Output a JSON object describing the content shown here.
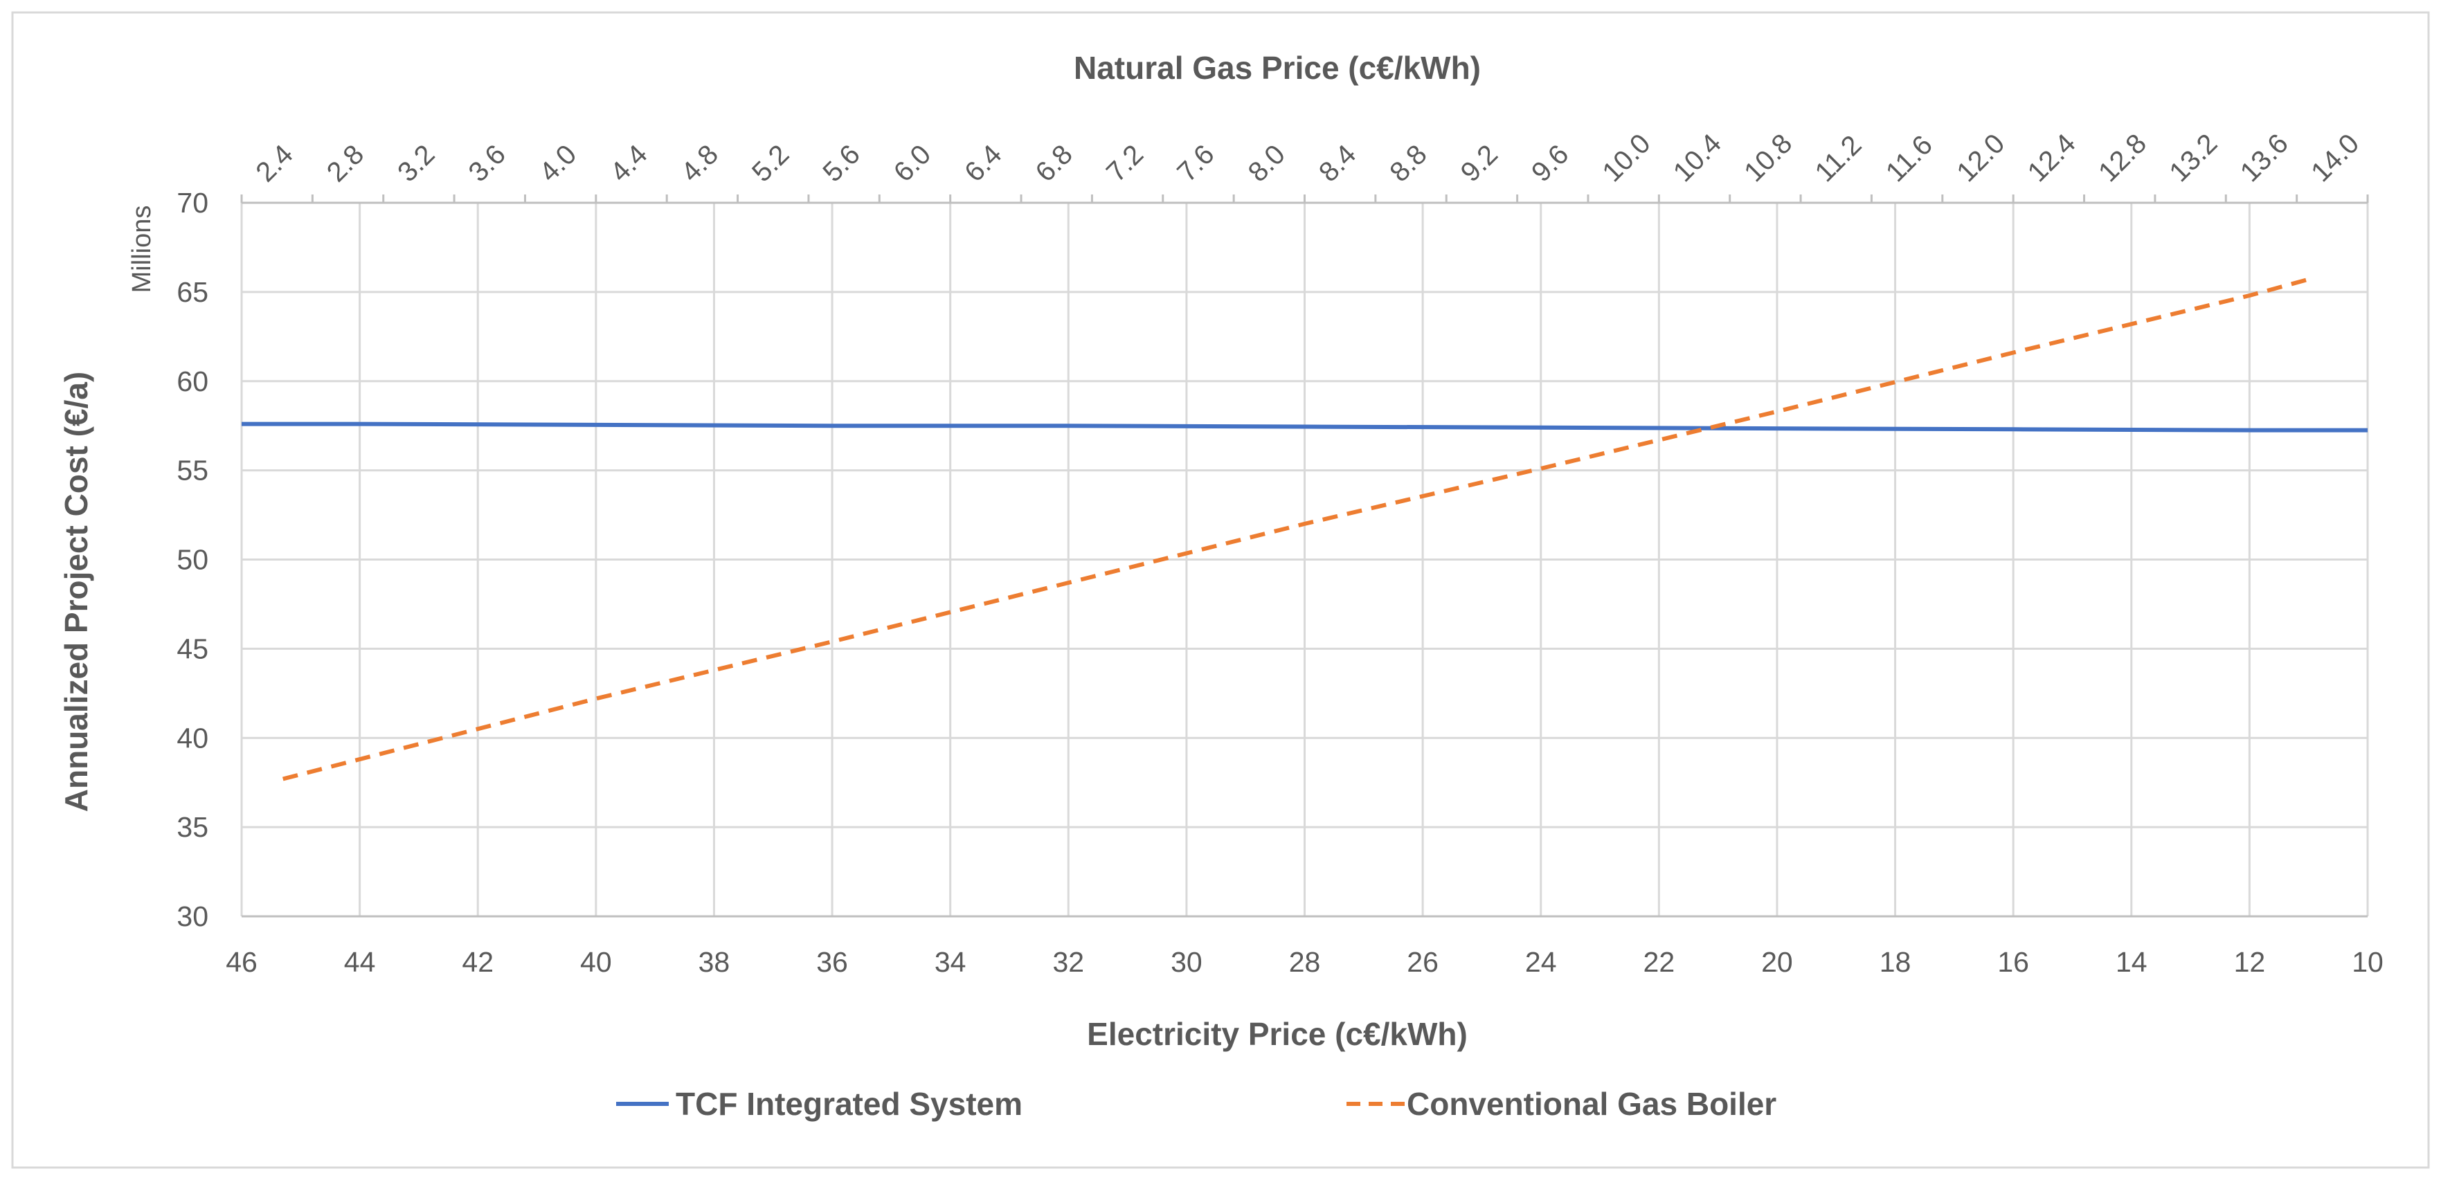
{
  "chart_data": {
    "type": "line",
    "title": "",
    "xlabel": "Electricity Price (c€/kWh)",
    "x2label": "Natural Gas Price (c€/kWh)",
    "ylabel": "Annualized Project Cost (€/a)",
    "y_units_label": "Millions",
    "ylim": [
      30,
      70
    ],
    "xlim": [
      46,
      10
    ],
    "y_ticks": [
      "30",
      "35",
      "40",
      "45",
      "50",
      "55",
      "60",
      "65",
      "70"
    ],
    "x_ticks": [
      "46",
      "44",
      "42",
      "40",
      "38",
      "36",
      "34",
      "32",
      "30",
      "28",
      "26",
      "24",
      "22",
      "20",
      "18",
      "16",
      "14",
      "12",
      "10"
    ],
    "x2_ticks": [
      "2.4",
      "2.8",
      "3.2",
      "3.6",
      "4.0",
      "4.4",
      "4.8",
      "5.2",
      "5.6",
      "6.0",
      "6.4",
      "6.8",
      "7.2",
      "7.6",
      "8.0",
      "8.4",
      "8.8",
      "9.2",
      "9.6",
      "10.0",
      "10.4",
      "10.8",
      "11.2",
      "11.6",
      "12.0",
      "12.4",
      "12.8",
      "13.2",
      "13.6",
      "14.0"
    ],
    "grid": true,
    "legend_position": "bottom",
    "series": [
      {
        "name": "TCF Integrated System",
        "color": "#4472c4",
        "dash": "solid",
        "x": [
          46,
          44,
          40,
          36,
          32,
          28,
          24,
          20,
          16,
          12,
          10
        ],
        "y": [
          57.6,
          57.6,
          57.55,
          57.5,
          57.5,
          57.45,
          57.4,
          57.35,
          57.3,
          57.25,
          57.25
        ]
      },
      {
        "name": "Conventional Gas Boiler",
        "color": "#ed7d31",
        "dash": "dashed",
        "x": [
          45.3,
          40,
          36,
          32,
          28,
          24,
          20,
          16,
          12,
          10.9
        ],
        "y": [
          37.7,
          42.2,
          45.4,
          48.7,
          52.0,
          55.1,
          58.3,
          61.6,
          64.8,
          65.8
        ]
      }
    ]
  }
}
